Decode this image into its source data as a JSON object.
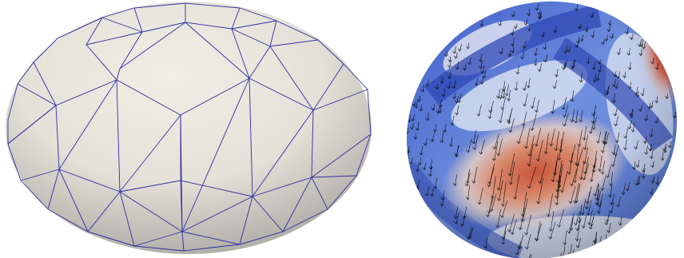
{
  "figure": {
    "panels": [
      {
        "id": "left",
        "subject": "triangulated-ellipsoid-mesh",
        "surface_color": "#e9e6dc",
        "edge_color": "#2f2fa0"
      },
      {
        "id": "right",
        "subject": "ellipsoid-vector-field",
        "colormap": [
          "#3b4cc0",
          "#c0cce6",
          "#f0ebe6",
          "#e9a183",
          "#b40426"
        ],
        "arrow_color": "#000000"
      }
    ]
  }
}
